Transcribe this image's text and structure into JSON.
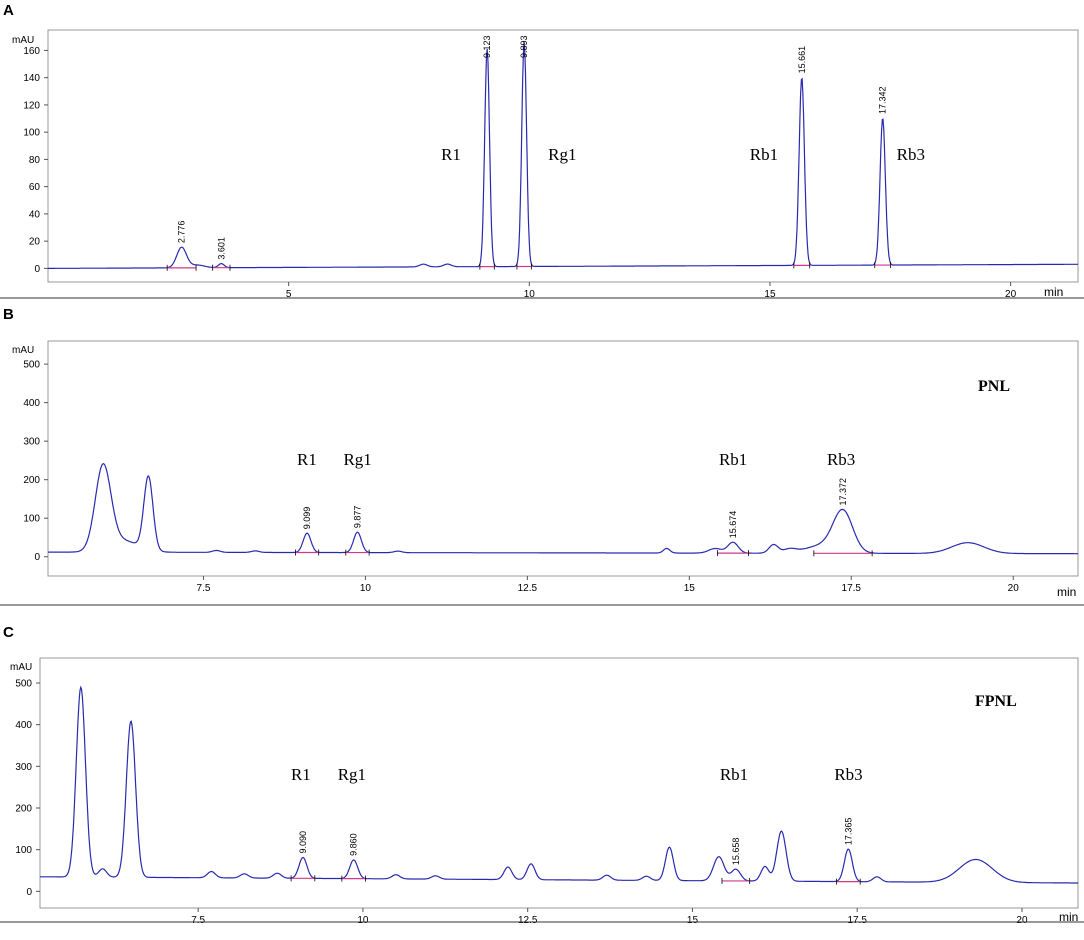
{
  "colors": {
    "trace": "#2a2ab0",
    "baseline": "#cc3a8a",
    "axis": "#555555"
  },
  "chart_data": [
    {
      "type": "line",
      "panel": "A",
      "ylabel": "mAU",
      "xlabel": "min",
      "xlim": [
        0,
        21.4
      ],
      "ylim": [
        -10,
        175
      ],
      "x_ticks": [
        5,
        10,
        15,
        20
      ],
      "x_tick_labels": [
        "5",
        "10",
        "15",
        "20"
      ],
      "y_ticks": [
        0,
        20,
        40,
        60,
        80,
        100,
        120,
        140,
        160
      ],
      "y_tick_labels": [
        "0",
        "20",
        "40",
        "60",
        "80",
        "100",
        "120",
        "140",
        "160"
      ],
      "sample_label": "",
      "peaks": [
        {
          "rt": 2.776,
          "height": 15,
          "width": 0.1,
          "rt_label": "2.776",
          "compound": ""
        },
        {
          "rt": 3.601,
          "height": 3,
          "width": 0.06,
          "rt_label": "3.601",
          "compound": ""
        },
        {
          "rt": 9.123,
          "height": 160,
          "width": 0.05,
          "rt_label": "9.123",
          "compound": "R1"
        },
        {
          "rt": 9.893,
          "height": 165,
          "width": 0.05,
          "rt_label": "9.893",
          "compound": "Rg1"
        },
        {
          "rt": 15.661,
          "height": 138,
          "width": 0.055,
          "rt_label": "15.661",
          "compound": "Rb1"
        },
        {
          "rt": 17.342,
          "height": 108,
          "width": 0.055,
          "rt_label": "17.342",
          "compound": "Rb3"
        }
      ],
      "minor_peaks": [
        {
          "rt": 3.1,
          "height": 2,
          "width": 0.15
        },
        {
          "rt": 7.8,
          "height": 2,
          "width": 0.08
        },
        {
          "rt": 8.3,
          "height": 2,
          "width": 0.08
        }
      ],
      "baseline_drift": [
        0,
        3
      ]
    },
    {
      "type": "line",
      "panel": "B",
      "ylabel": "mAU",
      "xlabel": "min",
      "xlim": [
        5.1,
        21.0
      ],
      "ylim": [
        -50,
        560
      ],
      "x_ticks": [
        7.5,
        10,
        12.5,
        15,
        17.5,
        20
      ],
      "x_tick_labels": [
        "7.5",
        "10",
        "12.5",
        "15",
        "17.5",
        "20"
      ],
      "y_ticks": [
        0,
        100,
        200,
        300,
        400,
        500
      ],
      "y_tick_labels": [
        "0",
        "100",
        "200",
        "300",
        "400",
        "500"
      ],
      "sample_label": "PNL",
      "peaks": [
        {
          "rt": 9.099,
          "height": 50,
          "width": 0.06,
          "rt_label": "9.099",
          "compound": "R1"
        },
        {
          "rt": 9.877,
          "height": 53,
          "width": 0.06,
          "rt_label": "9.877",
          "compound": "Rg1"
        },
        {
          "rt": 15.674,
          "height": 28,
          "width": 0.08,
          "rt_label": "15.674",
          "compound": "Rb1"
        },
        {
          "rt": 17.372,
          "height": 105,
          "width": 0.15,
          "rt_label": "17.372",
          "compound": "Rb3"
        }
      ],
      "minor_peaks": [
        {
          "rt": 5.95,
          "height": 215,
          "width": 0.12
        },
        {
          "rt": 6.25,
          "height": 30,
          "width": 0.25
        },
        {
          "rt": 6.65,
          "height": 190,
          "width": 0.07
        },
        {
          "rt": 7.7,
          "height": 5,
          "width": 0.06
        },
        {
          "rt": 8.3,
          "height": 4,
          "width": 0.06
        },
        {
          "rt": 10.5,
          "height": 4,
          "width": 0.06
        },
        {
          "rt": 14.65,
          "height": 12,
          "width": 0.05
        },
        {
          "rt": 15.4,
          "height": 12,
          "width": 0.1
        },
        {
          "rt": 16.3,
          "height": 22,
          "width": 0.07
        },
        {
          "rt": 16.55,
          "height": 10,
          "width": 0.1
        },
        {
          "rt": 17.05,
          "height": 20,
          "width": 0.25
        },
        {
          "rt": 19.3,
          "height": 28,
          "width": 0.25
        }
      ],
      "baseline_drift": [
        12,
        8
      ]
    },
    {
      "type": "line",
      "panel": "C",
      "ylabel": "mAU",
      "xlabel": "min",
      "xlim": [
        5.1,
        20.85
      ],
      "ylim": [
        -40,
        560
      ],
      "x_ticks": [
        7.5,
        10,
        12.5,
        15,
        17.5,
        20
      ],
      "x_tick_labels": [
        "7.5",
        "10",
        "12.5",
        "15",
        "17.5",
        "20"
      ],
      "y_ticks": [
        0,
        100,
        200,
        300,
        400,
        500
      ],
      "y_tick_labels": [
        "0",
        "100",
        "200",
        "300",
        "400",
        "500"
      ],
      "sample_label": "FPNL",
      "peaks": [
        {
          "rt": 9.09,
          "height": 50,
          "width": 0.06,
          "rt_label": "9.090",
          "compound": "R1"
        },
        {
          "rt": 9.86,
          "height": 45,
          "width": 0.06,
          "rt_label": "9.860",
          "compound": "Rg1"
        },
        {
          "rt": 15.658,
          "height": 28,
          "width": 0.07,
          "rt_label": "15.658",
          "compound": "Rb1"
        },
        {
          "rt": 17.365,
          "height": 78,
          "width": 0.06,
          "rt_label": "17.365",
          "compound": "Rb3"
        }
      ],
      "minor_peaks": [
        {
          "rt": 5.72,
          "height": 455,
          "width": 0.07
        },
        {
          "rt": 6.05,
          "height": 20,
          "width": 0.06
        },
        {
          "rt": 6.48,
          "height": 375,
          "width": 0.07
        },
        {
          "rt": 7.7,
          "height": 15,
          "width": 0.06
        },
        {
          "rt": 8.2,
          "height": 10,
          "width": 0.06
        },
        {
          "rt": 8.7,
          "height": 12,
          "width": 0.06
        },
        {
          "rt": 10.5,
          "height": 10,
          "width": 0.06
        },
        {
          "rt": 11.1,
          "height": 8,
          "width": 0.06
        },
        {
          "rt": 12.2,
          "height": 30,
          "width": 0.06
        },
        {
          "rt": 12.55,
          "height": 38,
          "width": 0.06
        },
        {
          "rt": 13.7,
          "height": 12,
          "width": 0.06
        },
        {
          "rt": 14.3,
          "height": 10,
          "width": 0.06
        },
        {
          "rt": 14.65,
          "height": 80,
          "width": 0.06
        },
        {
          "rt": 15.4,
          "height": 58,
          "width": 0.08
        },
        {
          "rt": 16.1,
          "height": 35,
          "width": 0.06
        },
        {
          "rt": 16.35,
          "height": 120,
          "width": 0.07
        },
        {
          "rt": 17.8,
          "height": 12,
          "width": 0.06
        },
        {
          "rt": 19.3,
          "height": 55,
          "width": 0.25
        }
      ],
      "baseline_drift": [
        35,
        20
      ]
    }
  ]
}
